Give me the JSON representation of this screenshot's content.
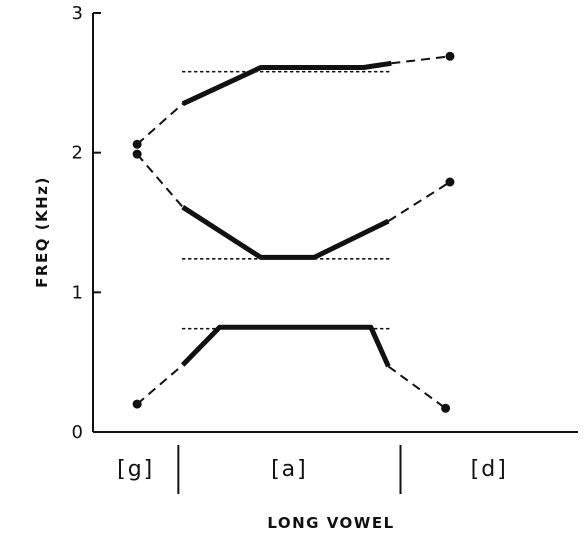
{
  "chart_data": {
    "type": "line",
    "xlabel": "LONG VOWEL",
    "ylabel": "FREQ (KHz)",
    "ylim": [
      0,
      3
    ],
    "yticks": [
      "0",
      "1",
      "2",
      "3"
    ],
    "x_range": [
      0,
      10
    ],
    "segments": [
      {
        "label": "[g]",
        "x_start": 0,
        "x_end": 1.76
      },
      {
        "label": "[a]",
        "x_start": 1.76,
        "x_end": 6.34
      },
      {
        "label": "[d]",
        "x_start": 6.34,
        "x_end": 10
      }
    ],
    "formants": [
      {
        "dashed_start": [
          [
            0.91,
            2.06
          ],
          [
            1.85,
            2.35
          ]
        ],
        "solid": [
          [
            1.85,
            2.35
          ],
          [
            3.46,
            2.61
          ],
          [
            5.58,
            2.61
          ],
          [
            6.15,
            2.64
          ]
        ],
        "dashed_end": [
          [
            6.15,
            2.64
          ],
          [
            7.36,
            2.69
          ]
        ],
        "dots": [
          [
            0.91,
            2.06
          ],
          [
            7.36,
            2.69
          ]
        ]
      },
      {
        "dashed_start": [
          [
            0.91,
            1.99
          ],
          [
            1.85,
            1.61
          ]
        ],
        "solid": [
          [
            1.85,
            1.61
          ],
          [
            3.46,
            1.25
          ],
          [
            4.56,
            1.25
          ],
          [
            6.09,
            1.51
          ]
        ],
        "dashed_end": [
          [
            6.09,
            1.51
          ],
          [
            7.36,
            1.79
          ]
        ],
        "dots": [
          [
            0.91,
            1.99
          ],
          [
            7.36,
            1.79
          ]
        ]
      },
      {
        "dashed_start": [
          [
            0.91,
            0.2
          ],
          [
            1.85,
            0.48
          ]
        ],
        "solid": [
          [
            1.85,
            0.48
          ],
          [
            2.61,
            0.75
          ],
          [
            5.73,
            0.75
          ],
          [
            6.09,
            0.47
          ]
        ],
        "dashed_end": [
          [
            6.09,
            0.47
          ],
          [
            7.27,
            0.17
          ]
        ],
        "dots": [
          [
            0.91,
            0.2
          ],
          [
            7.27,
            0.17
          ]
        ]
      }
    ],
    "targets": [
      {
        "y": 2.58,
        "x": [
          1.85,
          6.15
        ]
      },
      {
        "y": 1.24,
        "x": [
          1.85,
          6.15
        ]
      },
      {
        "y": 0.74,
        "x": [
          1.85,
          6.15
        ]
      }
    ]
  }
}
